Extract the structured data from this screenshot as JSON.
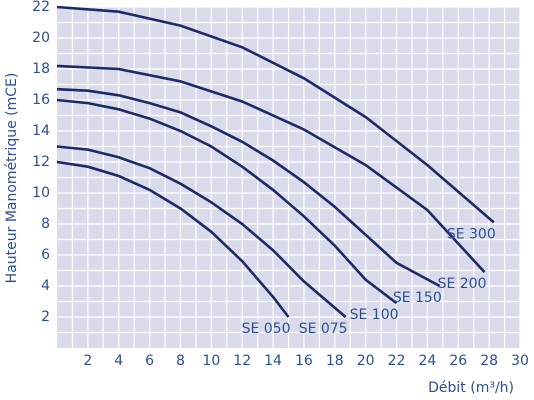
{
  "chart_data": {
    "type": "line",
    "x_label": "Débit (m³/h)",
    "y_label": "Hauteur Manométrique (mCE)",
    "xlim": [
      0,
      30
    ],
    "ylim": [
      0,
      22
    ],
    "xticks": [
      2,
      4,
      6,
      8,
      10,
      12,
      14,
      16,
      18,
      20,
      22,
      24,
      26,
      28,
      30
    ],
    "yticks": [
      2,
      4,
      6,
      8,
      10,
      12,
      14,
      16,
      18,
      20,
      22
    ],
    "grid": true,
    "series": [
      {
        "name": "SE 050",
        "color": "#1c2a68",
        "x": [
          0,
          2,
          4,
          6,
          8,
          10,
          12,
          14,
          15
        ],
        "values": [
          12,
          11.7,
          11.1,
          10.2,
          9,
          7.5,
          5.6,
          3.3,
          2
        ]
      },
      {
        "name": "SE 075",
        "color": "#1c2a68",
        "x": [
          0,
          2,
          4,
          6,
          8,
          10,
          12,
          14,
          16,
          18.7
        ],
        "values": [
          13,
          12.8,
          12.3,
          11.6,
          10.6,
          9.4,
          8,
          6.3,
          4.3,
          2
        ]
      },
      {
        "name": "SE 100",
        "color": "#1c2a68",
        "x": [
          0,
          2,
          4,
          6,
          8,
          10,
          12,
          14,
          16,
          18,
          20,
          22
        ],
        "values": [
          16,
          15.8,
          15.4,
          14.8,
          14,
          13,
          11.7,
          10.2,
          8.5,
          6.6,
          4.4,
          2.9
        ]
      },
      {
        "name": "SE 150",
        "color": "#1c2a68",
        "x": [
          0,
          2,
          4,
          6,
          8,
          10,
          12,
          14,
          16,
          18,
          20,
          22,
          24.8
        ],
        "values": [
          16.7,
          16.6,
          16.3,
          15.8,
          15.2,
          14.3,
          13.3,
          12.1,
          10.7,
          9.1,
          7.3,
          5.5,
          4
        ]
      },
      {
        "name": "SE 200",
        "color": "#1c2a68",
        "x": [
          0,
          4,
          8,
          12,
          16,
          20,
          24,
          27.7
        ],
        "values": [
          18.2,
          18,
          17.2,
          15.9,
          14.1,
          11.8,
          8.9,
          4.9
        ]
      },
      {
        "name": "SE 300",
        "color": "#1c2a68",
        "x": [
          0,
          4,
          8,
          12,
          16,
          20,
          24,
          28.3
        ],
        "values": [
          22,
          21.7,
          20.8,
          19.4,
          17.4,
          14.9,
          11.8,
          8.1
        ]
      }
    ]
  }
}
